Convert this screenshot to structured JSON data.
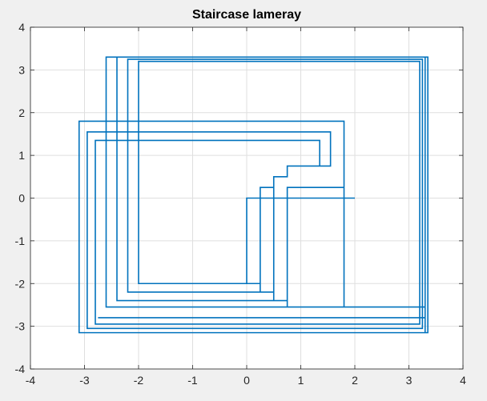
{
  "chart_data": {
    "type": "line",
    "title": "Staircase lameray",
    "xlabel": "",
    "ylabel": "",
    "xlim": [
      -4,
      4
    ],
    "ylim": [
      -4,
      4
    ],
    "xticks": [
      -4,
      -3,
      -2,
      -1,
      0,
      1,
      2,
      3,
      4
    ],
    "yticks": [
      -4,
      -3,
      -2,
      -1,
      0,
      1,
      2,
      3,
      4
    ],
    "grid": true,
    "line_color": "#0072bd",
    "axes_background": "#ffffff",
    "figure_background": "#f0f0f0",
    "series": [
      {
        "x": [
          2,
          0,
          0,
          0.25,
          0.25,
          0.5,
          0.5,
          0.75,
          0.75,
          1.35,
          1.35,
          -2.8,
          -2.8,
          3.2,
          3.2,
          -2.0,
          -2.0,
          0.25,
          0.25,
          0.5,
          0.5,
          0.75,
          0.75,
          1.55,
          1.55,
          -2.95,
          -2.95,
          3.25,
          3.25,
          -2.2,
          -2.2,
          0.5,
          0.5,
          0.75,
          0.75,
          1.8,
          1.8,
          -3.1,
          -3.1,
          3.3,
          3.3,
          -2.4,
          -2.4,
          0.75,
          0.75,
          1.8,
          1.8,
          -3.1,
          -3.1,
          3.35,
          3.35,
          -2.6,
          -2.6,
          3.3,
          3.3,
          -2.75
        ],
        "y": [
          0,
          0,
          -2.0,
          -2.0,
          0.25,
          0.25,
          0.5,
          0.5,
          0.75,
          0.75,
          1.35,
          1.35,
          -2.95,
          -2.95,
          3.2,
          3.2,
          -2.0,
          -2.0,
          -2.2,
          -2.2,
          0.5,
          0.5,
          0.75,
          0.75,
          1.55,
          1.55,
          -3.05,
          -3.05,
          3.25,
          3.25,
          -2.2,
          -2.2,
          -2.4,
          -2.4,
          0.25,
          0.25,
          1.8,
          1.8,
          -3.15,
          -3.15,
          3.3,
          3.3,
          -2.4,
          -2.4,
          -2.55,
          -2.55,
          1.8,
          1.8,
          -3.15,
          -3.15,
          3.3,
          3.3,
          -2.55,
          -2.55,
          -2.8,
          -2.8
        ]
      }
    ]
  }
}
